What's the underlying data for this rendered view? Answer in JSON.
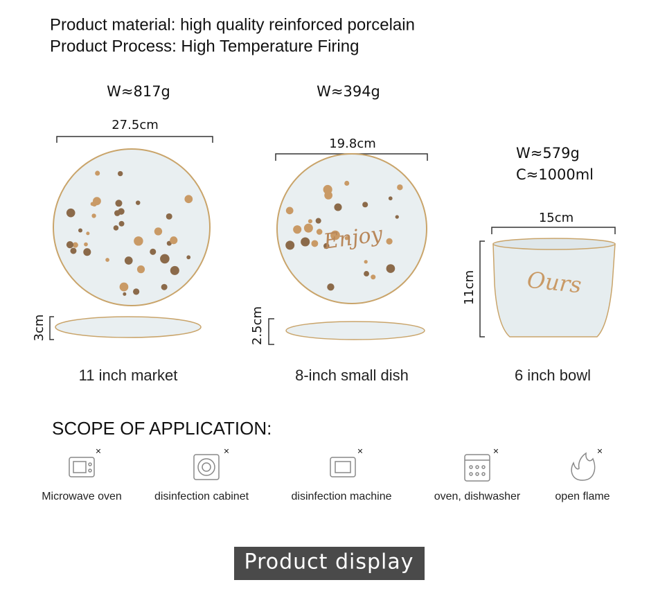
{
  "header": {
    "material": "Product material: high quality reinforced porcelain",
    "process": "Product Process: High Temperature Firing"
  },
  "products": [
    {
      "weight": "W≈817g",
      "width": "27.5cm",
      "height": "3cm",
      "name": "11 inch market"
    },
    {
      "weight": "W≈394g",
      "width": "19.8cm",
      "height": "2.5cm",
      "name": "8-inch small dish",
      "inscription": "Enjoy"
    },
    {
      "weight": "W≈579g",
      "capacity": "C≈1000ml",
      "width": "15cm",
      "height": "11cm",
      "name": "6 inch bowl",
      "inscription": "Ours"
    }
  ],
  "scope": {
    "title": "SCOPE OF APPLICATION:",
    "not_allowed": "×",
    "items": [
      "Microwave oven",
      "disinfection cabinet",
      "disinfection machine",
      "oven, dishwasher",
      "open flame"
    ]
  },
  "footer": {
    "button": "Product display"
  }
}
